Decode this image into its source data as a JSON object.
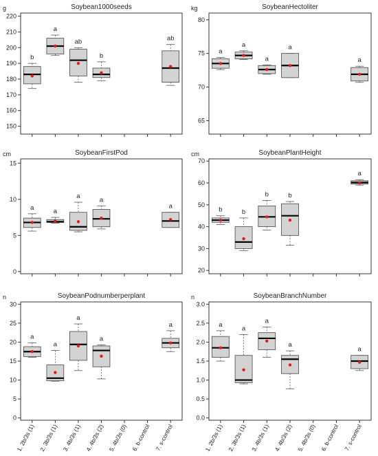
{
  "colors": {
    "box_fill": "#d3d3d3",
    "median": "#000000",
    "mean_point": "#e41a1c",
    "axis": "#333333"
  },
  "chart_data": [
    {
      "type": "boxplot",
      "title": "Soybean1000seeds",
      "ylabel": "g",
      "ylim": [
        145,
        222
      ],
      "yticks": [
        150,
        160,
        170,
        180,
        190,
        200,
        210,
        220
      ],
      "categories": [
        "1. 2b/3s (1)",
        "2. 3b/3s (1)",
        "3. 4b/3s (1)",
        "4. 4b/3s (2)",
        "5. 4b/3s (0)",
        "6. b-control",
        "7. s-control"
      ],
      "show_xticklabels": false,
      "boxes": [
        {
          "min": 174,
          "q1": 177,
          "median": 183,
          "q3": 188,
          "max": 190,
          "mean": 182,
          "letter": "b"
        },
        {
          "min": 195,
          "q1": 196,
          "median": 201,
          "q3": 206,
          "max": 208,
          "mean": 201,
          "letter": "a"
        },
        {
          "min": 178,
          "q1": 182,
          "median": 192,
          "q3": 199,
          "max": 200,
          "mean": 190,
          "letter": "ab"
        },
        {
          "min": 179,
          "q1": 181,
          "median": 183,
          "q3": 187,
          "max": 191,
          "mean": 184,
          "letter": "b"
        },
        null,
        null,
        {
          "min": 176,
          "q1": 178,
          "median": 187,
          "q3": 198,
          "max": 202,
          "mean": 188,
          "letter": "ab"
        }
      ]
    },
    {
      "type": "boxplot",
      "title": "SoybeanHectoliter",
      "ylabel": "kg",
      "ylim": [
        63,
        81
      ],
      "yticks": [
        65,
        70,
        75,
        80
      ],
      "categories": [
        "1. 2b/3s (1)",
        "2. 3b/3s (1)",
        "3. 4b/3s (1)",
        "4. 4b/3s (2)",
        "5. 4b/3s (0)",
        "6. b-control",
        "7. s-control"
      ],
      "show_xticklabels": false,
      "boxes": [
        {
          "min": 72.6,
          "q1": 72.8,
          "median": 73.5,
          "q3": 74.2,
          "max": 74.4,
          "mean": 73.5,
          "letter": "a"
        },
        {
          "min": 74.1,
          "q1": 74.2,
          "median": 74.7,
          "q3": 75.2,
          "max": 75.4,
          "mean": 74.7,
          "letter": "a"
        },
        {
          "min": 71.9,
          "q1": 72.0,
          "median": 72.6,
          "q3": 73.2,
          "max": 73.3,
          "mean": 72.6,
          "letter": "a"
        },
        {
          "min": 71.4,
          "q1": 71.4,
          "median": 73.2,
          "q3": 75.0,
          "max": 75.0,
          "mean": 73.2,
          "letter": "a"
        },
        null,
        null,
        {
          "min": 70.7,
          "q1": 70.9,
          "median": 71.9,
          "q3": 72.9,
          "max": 73.1,
          "mean": 71.9,
          "letter": "a"
        }
      ]
    },
    {
      "type": "boxplot",
      "title": "SoybeanFirstPod",
      "ylabel": "cm",
      "ylim": [
        -0.3,
        15.6
      ],
      "yticks": [
        0,
        5,
        10,
        15
      ],
      "categories": [
        "1. 2b/3s (1)",
        "2. 3b/3s (1)",
        "3. 4b/3s (1)",
        "4. 4b/3s (2)",
        "5. 4b/3s (0)",
        "6. b-control",
        "7. s-control"
      ],
      "show_xticklabels": false,
      "boxes": [
        {
          "min": 5.6,
          "q1": 6.1,
          "median": 6.8,
          "q3": 7.4,
          "max": 8.0,
          "mean": 6.8,
          "letter": "a"
        },
        {
          "min": 6.7,
          "q1": 6.8,
          "median": 6.9,
          "q3": 7.2,
          "max": 7.5,
          "mean": 7.0,
          "letter": "a"
        },
        {
          "min": 5.5,
          "q1": 5.7,
          "median": 6.2,
          "q3": 8.2,
          "max": 9.6,
          "mean": 6.9,
          "letter": "a"
        },
        {
          "min": 5.9,
          "q1": 6.2,
          "median": 7.3,
          "q3": 8.6,
          "max": 9.1,
          "mean": 7.4,
          "letter": "a"
        },
        null,
        null,
        {
          "min": 6.1,
          "q1": 6.1,
          "median": 7.0,
          "q3": 8.2,
          "max": 8.2,
          "mean": 7.2,
          "letter": "a"
        }
      ]
    },
    {
      "type": "boxplot",
      "title": "SoybeanPlantHeight",
      "ylabel": "cm",
      "ylim": [
        18.5,
        71
      ],
      "yticks": [
        20,
        30,
        40,
        50,
        60,
        70
      ],
      "categories": [
        "1. 2b/3s (1)",
        "2. 3b/3s (1)",
        "3. 4b/3s (1)",
        "4. 4b/3s (2)",
        "5. 4b/3s (0)",
        "6. b-control",
        "7. s-control"
      ],
      "show_xticklabels": false,
      "boxes": [
        {
          "min": 41.0,
          "q1": 42.0,
          "median": 43.0,
          "q3": 44.0,
          "max": 45.0,
          "mean": 43.0,
          "letter": "b"
        },
        {
          "min": 29.0,
          "q1": 30.0,
          "median": 33.0,
          "q3": 40.0,
          "max": 44.0,
          "mean": 34.5,
          "letter": "b"
        },
        {
          "min": 38.5,
          "q1": 40.0,
          "median": 44.5,
          "q3": 49.5,
          "max": 52.0,
          "mean": 44.5,
          "letter": "b"
        },
        {
          "min": 31.5,
          "q1": 36.0,
          "median": 45.0,
          "q3": 50.5,
          "max": 51.5,
          "mean": 43.0,
          "letter": "b"
        },
        null,
        null,
        {
          "min": 59.0,
          "q1": 59.5,
          "median": 60.2,
          "q3": 61.0,
          "max": 61.5,
          "mean": 60.0,
          "letter": "a"
        }
      ]
    },
    {
      "type": "boxplot",
      "title": "SoybeanPodnumberperplant",
      "ylabel": "n",
      "ylim": [
        -0.6,
        30.6
      ],
      "yticks": [
        0,
        5,
        10,
        15,
        20,
        25,
        30
      ],
      "categories": [
        "1. 2b/3s (1)",
        "2. 3b/3s (1)",
        "3. 4b/3s (1)",
        "4. 4b/3s (2)",
        "5. 4b/3s (0)",
        "6. b-control",
        "7. s-control"
      ],
      "show_xticklabels": true,
      "boxes": [
        {
          "min": 16.0,
          "q1": 16.2,
          "median": 17.5,
          "q3": 18.8,
          "max": 19.8,
          "mean": 17.5,
          "letter": "a"
        },
        {
          "min": 9.7,
          "q1": 9.8,
          "median": 10.5,
          "q3": 14.0,
          "max": 17.8,
          "mean": 12.0,
          "letter": "a"
        },
        {
          "min": 12.5,
          "q1": 15.2,
          "median": 19.4,
          "q3": 22.8,
          "max": 24.8,
          "mean": 19.0,
          "letter": "a"
        },
        {
          "min": 10.3,
          "q1": 13.5,
          "median": 17.8,
          "q3": 19.0,
          "max": 19.3,
          "mean": 16.3,
          "letter": "a"
        },
        null,
        null,
        {
          "min": 17.5,
          "q1": 18.5,
          "median": 19.8,
          "q3": 21.0,
          "max": 23.0,
          "mean": 19.8,
          "letter": "a"
        }
      ]
    },
    {
      "type": "boxplot",
      "title": "SoybeanBranchNumber",
      "ylabel": "n",
      "ylim": [
        -0.06,
        3.06
      ],
      "yticks": [
        0.0,
        0.5,
        1.0,
        1.5,
        2.0,
        2.5,
        3.0
      ],
      "categories": [
        "1. 2b/3s (1)",
        "2. 3b/3s (1)",
        "3. 4b/3s (1)",
        "4. 4b/3s (2)",
        "5. 4b/3s (0)",
        "6. b-control",
        "7. s-control"
      ],
      "show_xticklabels": true,
      "boxes": [
        {
          "min": 1.5,
          "q1": 1.6,
          "median": 1.85,
          "q3": 2.15,
          "max": 2.3,
          "mean": 1.85,
          "letter": "a"
        },
        {
          "min": 0.9,
          "q1": 0.93,
          "median": 1.0,
          "q3": 1.65,
          "max": 2.2,
          "mean": 1.27,
          "letter": "a"
        },
        {
          "min": 1.6,
          "q1": 1.8,
          "median": 2.1,
          "q3": 2.25,
          "max": 2.4,
          "mean": 2.03,
          "letter": "a"
        },
        {
          "min": 0.77,
          "q1": 1.17,
          "median": 1.55,
          "q3": 1.65,
          "max": 1.77,
          "mean": 1.4,
          "letter": "a"
        },
        null,
        null,
        {
          "min": 1.25,
          "q1": 1.3,
          "median": 1.5,
          "q3": 1.65,
          "max": 1.65,
          "mean": 1.47,
          "letter": "a"
        }
      ]
    }
  ]
}
